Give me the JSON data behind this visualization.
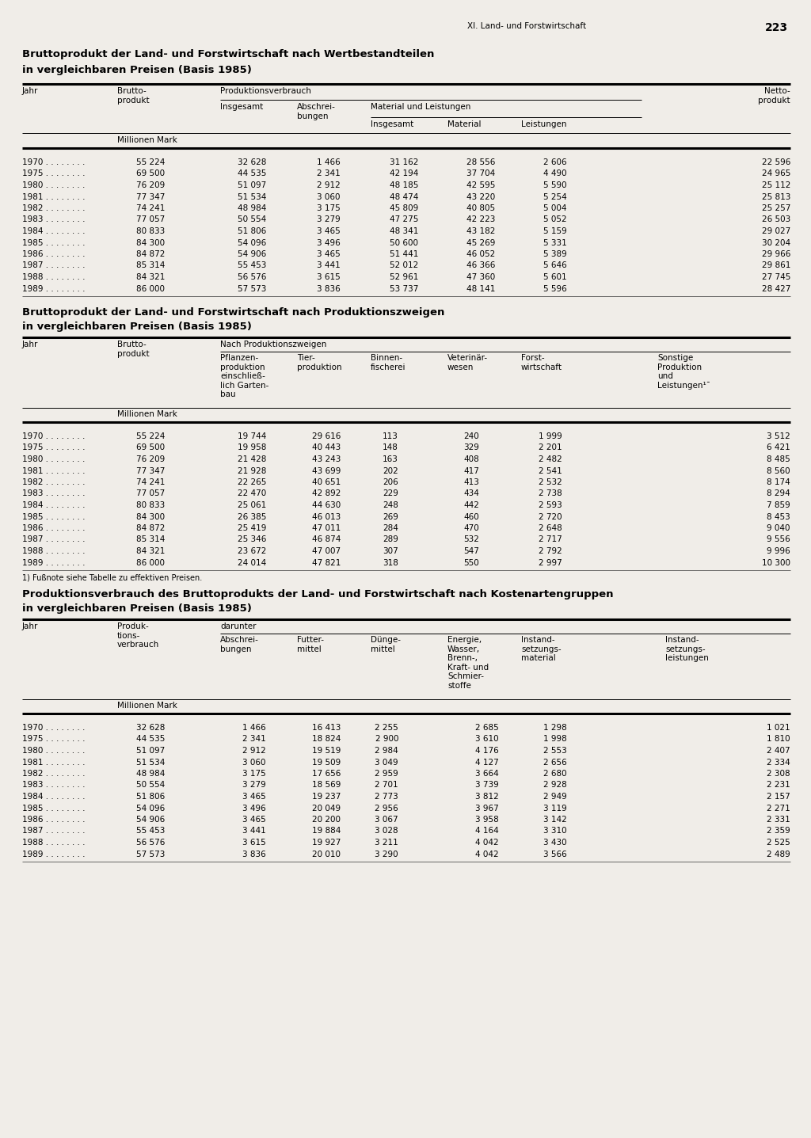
{
  "page_header": "XI. Land- und Forstwirtschaft",
  "page_number": "223",
  "bg_color": "#f0ede8",
  "table1_title": "Bruttoprodukt der Land- und Forstwirtschaft nach Wertbestandteilen",
  "table1_subtitle": "in vergleichbaren Preisen (Basis 1985)",
  "table1_unit": "Millionen Mark",
  "table1_data": [
    [
      "1970",
      "55 224",
      "32 628",
      "1 466",
      "31 162",
      "28 556",
      "2 606",
      "22 596"
    ],
    [
      "1975",
      "69 500",
      "44 535",
      "2 341",
      "42 194",
      "37 704",
      "4 490",
      "24 965"
    ],
    [
      "1980",
      "76 209",
      "51 097",
      "2 912",
      "48 185",
      "42 595",
      "5 590",
      "25 112"
    ],
    [
      "1981",
      "77 347",
      "51 534",
      "3 060",
      "48 474",
      "43 220",
      "5 254",
      "25 813"
    ],
    [
      "1982",
      "74 241",
      "48 984",
      "3 175",
      "45 809",
      "40 805",
      "5 004",
      "25 257"
    ],
    [
      "1983",
      "77 057",
      "50 554",
      "3 279",
      "47 275",
      "42 223",
      "5 052",
      "26 503"
    ],
    [
      "1984",
      "80 833",
      "51 806",
      "3 465",
      "48 341",
      "43 182",
      "5 159",
      "29 027"
    ],
    [
      "1985",
      "84 300",
      "54 096",
      "3 496",
      "50 600",
      "45 269",
      "5 331",
      "30 204"
    ],
    [
      "1986",
      "84 872",
      "54 906",
      "3 465",
      "51 441",
      "46 052",
      "5 389",
      "29 966"
    ],
    [
      "1987",
      "85 314",
      "55 453",
      "3 441",
      "52 012",
      "46 366",
      "5 646",
      "29 861"
    ],
    [
      "1988",
      "84 321",
      "56 576",
      "3 615",
      "52 961",
      "47 360",
      "5 601",
      "27 745"
    ],
    [
      "1989",
      "86 000",
      "57 573",
      "3 836",
      "53 737",
      "48 141",
      "5 596",
      "28 427"
    ]
  ],
  "table2_title": "Bruttoprodukt der Land- und Forstwirtschaft nach Produktionszweigen",
  "table2_subtitle": "in vergleichbaren Preisen (Basis 1985)",
  "table2_unit": "Millionen Mark",
  "table2_footnote": "1) Fußnote siehe Tabelle zu effektiven Preisen.",
  "table2_data": [
    [
      "1970",
      "55 224",
      "19 744",
      "29 616",
      "113",
      "240",
      "1 999",
      "3 512"
    ],
    [
      "1975",
      "69 500",
      "19 958",
      "40 443",
      "148",
      "329",
      "2 201",
      "6 421"
    ],
    [
      "1980",
      "76 209",
      "21 428",
      "43 243",
      "163",
      "408",
      "2 482",
      "8 485"
    ],
    [
      "1981",
      "77 347",
      "21 928",
      "43 699",
      "202",
      "417",
      "2 541",
      "8 560"
    ],
    [
      "1982",
      "74 241",
      "22 265",
      "40 651",
      "206",
      "413",
      "2 532",
      "8 174"
    ],
    [
      "1983",
      "77 057",
      "22 470",
      "42 892",
      "229",
      "434",
      "2 738",
      "8 294"
    ],
    [
      "1984",
      "80 833",
      "25 061",
      "44 630",
      "248",
      "442",
      "2 593",
      "7 859"
    ],
    [
      "1985",
      "84 300",
      "26 385",
      "46 013",
      "269",
      "460",
      "2 720",
      "8 453"
    ],
    [
      "1986",
      "84 872",
      "25 419",
      "47 011",
      "284",
      "470",
      "2 648",
      "9 040"
    ],
    [
      "1987",
      "85 314",
      "25 346",
      "46 874",
      "289",
      "532",
      "2 717",
      "9 556"
    ],
    [
      "1988",
      "84 321",
      "23 672",
      "47 007",
      "307",
      "547",
      "2 792",
      "9 996"
    ],
    [
      "1989",
      "86 000",
      "24 014",
      "47 821",
      "318",
      "550",
      "2 997",
      "10 300"
    ]
  ],
  "table3_title": "Produktionsverbrauch des Bruttoprodukts der Land- und Forstwirtschaft nach Kostenartengruppen",
  "table3_subtitle": "in vergleichbaren Preisen (Basis 1985)",
  "table3_unit": "Millionen Mark",
  "table3_data": [
    [
      "1970",
      "32 628",
      "1 466",
      "16 413",
      "2 255",
      "2 685",
      "1 298",
      "1 021"
    ],
    [
      "1975",
      "44 535",
      "2 341",
      "18 824",
      "2 900",
      "3 610",
      "1 998",
      "1 810"
    ],
    [
      "1980",
      "51 097",
      "2 912",
      "19 519",
      "2 984",
      "4 176",
      "2 553",
      "2 407"
    ],
    [
      "1981",
      "51 534",
      "3 060",
      "19 509",
      "3 049",
      "4 127",
      "2 656",
      "2 334"
    ],
    [
      "1982",
      "48 984",
      "3 175",
      "17 656",
      "2 959",
      "3 664",
      "2 680",
      "2 308"
    ],
    [
      "1983",
      "50 554",
      "3 279",
      "18 569",
      "2 701",
      "3 739",
      "2 928",
      "2 231"
    ],
    [
      "1984",
      "51 806",
      "3 465",
      "19 237",
      "2 773",
      "3 812",
      "2 949",
      "2 157"
    ],
    [
      "1985",
      "54 096",
      "3 496",
      "20 049",
      "2 956",
      "3 967",
      "3 119",
      "2 271"
    ],
    [
      "1986",
      "54 906",
      "3 465",
      "20 200",
      "3 067",
      "3 958",
      "3 142",
      "2 331"
    ],
    [
      "1987",
      "55 453",
      "3 441",
      "19 884",
      "3 028",
      "4 164",
      "3 310",
      "2 359"
    ],
    [
      "1988",
      "56 576",
      "3 615",
      "19 927",
      "3 211",
      "4 042",
      "3 430",
      "2 525"
    ],
    [
      "1989",
      "57 573",
      "3 836",
      "20 010",
      "3 290",
      "4 042",
      "3 566",
      "2 489"
    ]
  ]
}
